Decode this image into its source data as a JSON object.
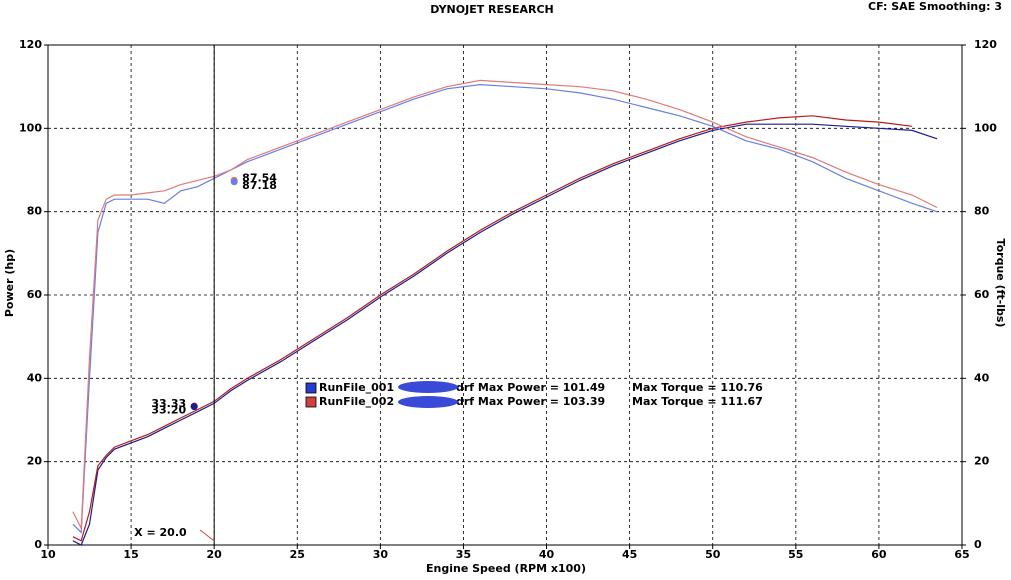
{
  "chart_data": {
    "type": "line",
    "title": "DYNOJET RESEARCH",
    "subtitle": "CF: SAE  Smoothing: 3",
    "xlabel": "Engine Speed (RPM x100)",
    "ylabel": "Power (hp)",
    "y2label": "Torque (ft-lbs)",
    "x": [
      11.5,
      12,
      12.5,
      13,
      13.5,
      14,
      15,
      16,
      17,
      18,
      19,
      20,
      21,
      22,
      24,
      26,
      28,
      30,
      32,
      34,
      36,
      38,
      40,
      42,
      44,
      46,
      48,
      50,
      52,
      54,
      56,
      58,
      60,
      62,
      63.5
    ],
    "series": [
      {
        "color": "#1c1c8c",
        "values": [
          1,
          0,
          5,
          18,
          21,
          23,
          24.5,
          26,
          28,
          30,
          32,
          34,
          37,
          39.5,
          44,
          49,
          54,
          59.5,
          64.5,
          70,
          75,
          79.5,
          83.5,
          87.5,
          91,
          94,
          97,
          99.5,
          101,
          101,
          101,
          100.5,
          100,
          99.5,
          97.5
        ]
      },
      {
        "color": "#b41c1c",
        "values": [
          2,
          1,
          8,
          19,
          21.5,
          23.5,
          25,
          26.5,
          28.5,
          30.5,
          32.5,
          34.5,
          37.5,
          40,
          44.5,
          49.5,
          54.5,
          60,
          65,
          70.5,
          75.5,
          80,
          84,
          88,
          91.5,
          94.5,
          97.5,
          100,
          101.5,
          102.5,
          103,
          102,
          101.5,
          100.5,
          null
        ]
      },
      {
        "color": "#6a7fe0",
        "axis": "y2",
        "values": [
          5,
          3,
          40,
          75,
          82,
          83,
          83,
          83,
          82,
          85,
          86,
          88,
          90,
          92,
          95,
          98,
          101,
          104,
          107,
          109.5,
          110.5,
          110,
          109.5,
          108.5,
          107,
          105,
          103,
          100.5,
          97,
          95,
          92,
          88,
          85,
          82,
          80
        ]
      },
      {
        "color": "#e07a7a",
        "axis": "y2",
        "values": [
          8,
          4,
          45,
          78,
          83,
          84,
          84,
          84.5,
          85,
          86.5,
          87.5,
          88.5,
          90,
          92.5,
          95.5,
          98.5,
          101.5,
          104.5,
          107.5,
          110,
          111.5,
          111,
          110.5,
          110,
          109,
          107,
          104.5,
          101.5,
          98,
          95.5,
          93,
          89.5,
          86.5,
          84,
          81
        ]
      }
    ],
    "xlim": [
      10,
      65
    ],
    "xticks": [
      10,
      15,
      20,
      25,
      30,
      35,
      40,
      45,
      50,
      55,
      60,
      65
    ],
    "ylim": [
      0,
      120
    ],
    "yticks": [
      0,
      20,
      40,
      60,
      80,
      100,
      120
    ],
    "y2lim": [
      0,
      120
    ],
    "y2ticks": [
      0,
      20,
      40,
      60,
      80,
      100,
      120
    ],
    "grid": true,
    "cursor": {
      "x": 20,
      "label": "X = 20.0",
      "readouts": [
        {
          "series": 3,
          "value": 87.54,
          "label": "87.54"
        },
        {
          "series": 2,
          "value": 87.18,
          "label": "87.18"
        },
        {
          "series": 1,
          "value": 33.33,
          "label": "33.33"
        },
        {
          "series": 0,
          "value": 33.2,
          "label": "33.20"
        }
      ]
    },
    "legend": [
      {
        "name": "RunFile_001",
        "color": "#2a3ad0",
        "power": "drf Max Power = 101.49",
        "torque": "Max Torque = 110.76"
      },
      {
        "name": "RunFile_002",
        "color": "#d04040",
        "power": "drf Max Power = 103.39",
        "torque": "Max Torque = 111.67"
      }
    ]
  }
}
